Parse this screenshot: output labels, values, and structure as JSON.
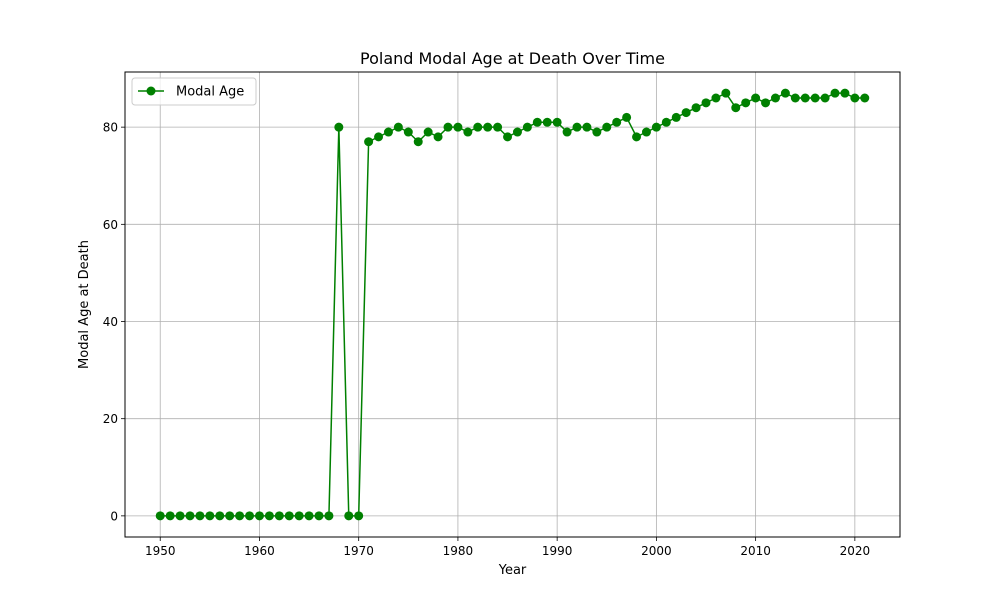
{
  "chart_data": {
    "type": "line",
    "title": "Poland Modal Age at Death Over Time",
    "xlabel": "Year",
    "ylabel": "Modal Age at Death",
    "xlim": [
      1946.45,
      2024.55
    ],
    "ylim": [
      -4.35,
      91.35
    ],
    "xticks": [
      1950,
      1960,
      1970,
      1980,
      1990,
      2000,
      2010,
      2020
    ],
    "yticks": [
      0,
      20,
      40,
      60,
      80
    ],
    "grid": true,
    "legend_position": "upper-left",
    "series": [
      {
        "name": "Modal Age",
        "color": "#008000",
        "marker": "circle",
        "x": [
          1950,
          1951,
          1952,
          1953,
          1954,
          1955,
          1956,
          1957,
          1958,
          1959,
          1960,
          1961,
          1962,
          1963,
          1964,
          1965,
          1966,
          1967,
          1968,
          1969,
          1970,
          1971,
          1972,
          1973,
          1974,
          1975,
          1976,
          1977,
          1978,
          1979,
          1980,
          1981,
          1982,
          1983,
          1984,
          1985,
          1986,
          1987,
          1988,
          1989,
          1990,
          1991,
          1992,
          1993,
          1994,
          1995,
          1996,
          1997,
          1998,
          1999,
          2000,
          2001,
          2002,
          2003,
          2004,
          2005,
          2006,
          2007,
          2008,
          2009,
          2010,
          2011,
          2012,
          2013,
          2014,
          2015,
          2016,
          2017,
          2018,
          2019,
          2020,
          2021
        ],
        "y": [
          0,
          0,
          0,
          0,
          0,
          0,
          0,
          0,
          0,
          0,
          0,
          0,
          0,
          0,
          0,
          0,
          0,
          0,
          80,
          0,
          0,
          77,
          78,
          79,
          80,
          79,
          77,
          79,
          78,
          80,
          80,
          79,
          80,
          80,
          80,
          78,
          79,
          80,
          81,
          81,
          81,
          79,
          80,
          80,
          79,
          80,
          81,
          82,
          78,
          79,
          80,
          81,
          82,
          83,
          84,
          85,
          86,
          87,
          84,
          85,
          86,
          85,
          86,
          87,
          86,
          86,
          86,
          86,
          87,
          87,
          86,
          86
        ]
      }
    ]
  }
}
